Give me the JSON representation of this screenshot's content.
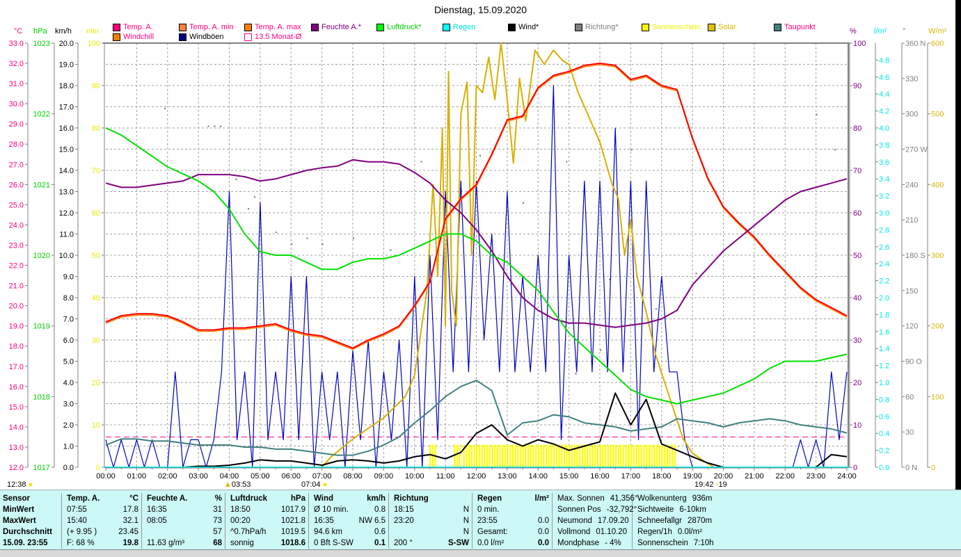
{
  "title": "Dienstag, 15.09.2020",
  "units": {
    "c": "°C",
    "hpa": "hPa",
    "kmh": "km/h",
    "min": "min",
    "pct": "%",
    "lm2": "l/m²",
    "deg": "°",
    "wm2": "W/m²"
  },
  "legend": [
    {
      "label": "Temp. A.",
      "color": "#ff0080",
      "text": "#ff0080"
    },
    {
      "label": "Temp. A. min",
      "color": "#ff8040",
      "text": "#ff0080"
    },
    {
      "label": "Temp. A. max",
      "color": "#ff8000",
      "text": "#ff0080"
    },
    {
      "label": "Feuchte A.*",
      "color": "#800080",
      "text": "#800080"
    },
    {
      "label": "Luftdruck*",
      "color": "#00ff00",
      "text": "#00d000"
    },
    {
      "label": "Regen",
      "color": "#00ffff",
      "text": "#00e0e0"
    },
    {
      "label": "Windchill",
      "color": "#ff8000",
      "text": "#ff0080"
    },
    {
      "label": "Windböen",
      "color": "#000080",
      "text": "#000000"
    },
    {
      "label": "13.5 Monat-Ø",
      "color": "#ffffff",
      "text": "#ff0080"
    },
    {
      "label": "Wind*",
      "color": "#000000",
      "text": "#000000"
    },
    {
      "label": "Richtung*",
      "color": "#808080",
      "text": "#808080"
    },
    {
      "label": "Sonnenschein",
      "color": "#ffff00",
      "text": "#f0f000"
    },
    {
      "label": "Solar",
      "color": "#e0c000",
      "text": "#d8b800"
    },
    {
      "label": "Taupunkt",
      "color": "#408080",
      "text": "#ff0080"
    }
  ],
  "markers": {
    "moon_left": "12:38",
    "moonrise": "03:53",
    "sunrise": "07:04",
    "sunset": "19:42",
    "sunset_extra": "19"
  },
  "chart_data": {
    "type": "line",
    "title": "Dienstag, 15.09.2020",
    "x_ticks": [
      "00:00",
      "01:00",
      "02:00",
      "03:00",
      "04:00",
      "05:00",
      "06:00",
      "07:00",
      "08:00",
      "09:00",
      "10:00",
      "11:00",
      "12:00",
      "13:00",
      "14:00",
      "15:00",
      "16:00",
      "17:00",
      "18:00",
      "19:00",
      "20:00",
      "21:00",
      "22:00",
      "23:00",
      "24:00"
    ],
    "axes": {
      "temp": {
        "unit": "°C",
        "range": [
          12,
          33
        ],
        "ticks": [
          "33.0",
          "32.0",
          "31.0",
          "30.0",
          "29.0",
          "28.0",
          "27.0",
          "26.0",
          "25.0",
          "24.0",
          "23.0",
          "22.0",
          "21.0",
          "20.0",
          "19.0",
          "18.0",
          "17.0",
          "16.0",
          "15.0",
          "14.0",
          "13.0",
          "12.0"
        ]
      },
      "pressure": {
        "unit": "hPa",
        "range": [
          1017,
          1023
        ],
        "ticks": [
          "1023",
          "1022",
          "1021",
          "1020",
          "1019",
          "1018",
          "1017"
        ]
      },
      "wind": {
        "unit": "km/h",
        "range": [
          0,
          20
        ],
        "ticks": [
          "20.0",
          "19.0",
          "18.0",
          "17.0",
          "16.0",
          "15.0",
          "14.0",
          "13.0",
          "12.0",
          "11.0",
          "10.0",
          "9.0",
          "8.0",
          "7.0",
          "6.0",
          "5.0",
          "4.0",
          "3.0",
          "2.0",
          "1.0",
          "0.0"
        ]
      },
      "sunshine": {
        "unit": "min",
        "range": [
          0,
          100
        ],
        "ticks": [
          "100",
          "90",
          "80",
          "70",
          "60",
          "50",
          "40",
          "30",
          "20",
          "10",
          "0"
        ]
      },
      "humidity": {
        "unit": "%",
        "range": [
          0,
          100
        ],
        "ticks": [
          "100",
          "90",
          "80",
          "70",
          "60",
          "50",
          "40",
          "30",
          "20",
          "10",
          "0"
        ]
      },
      "rain": {
        "unit": "l/m²",
        "range": [
          0,
          5
        ],
        "ticks": [
          "4.8",
          "4.6",
          "4.4",
          "4.2",
          "4.0",
          "3.8",
          "3.6",
          "3.4",
          "3.2",
          "3.0",
          "2.8",
          "2.6",
          "2.4",
          "2.2",
          "2.0",
          "1.8",
          "1.6",
          "1.4",
          "1.2",
          "1.0",
          "0.8",
          "0.6",
          "0.4",
          "0.2",
          "0.0"
        ]
      },
      "direction": {
        "unit": "°",
        "range": [
          0,
          360
        ],
        "ticks": [
          "360 N",
          "330",
          "300",
          "270 W",
          "240",
          "210",
          "180 S",
          "150",
          "120",
          "90 O",
          "60",
          "30",
          "0 N"
        ]
      },
      "solar": {
        "unit": "W/m²",
        "range": [
          0,
          600
        ],
        "ticks": [
          "600",
          "500",
          "400",
          "300",
          "200",
          "100",
          "0"
        ]
      }
    },
    "x_step_hours": 0.5,
    "series": [
      {
        "name": "Temp. A.",
        "axis": "temp",
        "values": [
          19.2,
          19.5,
          19.6,
          19.6,
          19.5,
          19.2,
          18.8,
          18.8,
          18.9,
          18.9,
          19.0,
          19.1,
          18.8,
          18.6,
          18.5,
          18.2,
          17.9,
          18.3,
          18.6,
          19.0,
          20.0,
          21.2,
          24.3,
          25.3,
          26.0,
          27.5,
          29.2,
          29.4,
          30.8,
          31.4,
          31.6,
          31.9,
          32.0,
          31.9,
          31.2,
          31.4,
          30.9,
          30.7,
          28.3,
          26.3,
          24.9,
          24.1,
          23.4,
          22.5,
          21.7,
          20.9,
          20.3,
          19.9,
          19.5
        ]
      },
      {
        "name": "Feuchte A.*",
        "axis": "humidity",
        "values": [
          67,
          66,
          66,
          66.5,
          67,
          67.5,
          69,
          69,
          69,
          68.5,
          67.5,
          68,
          69,
          70,
          70.6,
          71,
          72.5,
          72,
          72,
          71.5,
          69.5,
          67,
          63,
          60,
          56,
          51,
          45,
          40,
          37,
          35,
          34,
          34,
          33.5,
          33,
          33.5,
          34,
          35,
          37,
          43,
          47,
          51,
          54,
          57,
          60,
          63,
          65,
          66,
          67,
          68
        ]
      },
      {
        "name": "Luftdruck*",
        "axis": "pressure",
        "values": [
          1021.8,
          1021.7,
          1021.55,
          1021.4,
          1021.25,
          1021.15,
          1021.05,
          1020.9,
          1020.65,
          1020.3,
          1020.05,
          1020.0,
          1020.0,
          1019.9,
          1019.8,
          1019.8,
          1019.9,
          1019.95,
          1019.95,
          1020.0,
          1020.1,
          1020.2,
          1020.3,
          1020.3,
          1020.2,
          1020.0,
          1019.9,
          1019.7,
          1019.5,
          1019.2,
          1018.9,
          1018.7,
          1018.5,
          1018.3,
          1018.1,
          1018.0,
          1017.95,
          1017.9,
          1017.95,
          1018.0,
          1018.05,
          1018.15,
          1018.25,
          1018.4,
          1018.5,
          1018.5,
          1018.5,
          1018.55,
          1018.6
        ]
      },
      {
        "name": "Taupunkt",
        "axis": "temp",
        "values": [
          13.1,
          13.4,
          13.4,
          13.3,
          13.3,
          13.2,
          13.1,
          13.1,
          13.1,
          13.0,
          13.0,
          12.9,
          12.9,
          12.8,
          12.7,
          12.6,
          12.6,
          12.8,
          13.1,
          13.5,
          14.2,
          14.8,
          15.5,
          16.0,
          16.3,
          15.8,
          13.6,
          14.2,
          14.3,
          14.6,
          14.5,
          14.2,
          14.1,
          14.0,
          13.8,
          13.9,
          14.0,
          14.4,
          14.3,
          14.2,
          14.0,
          14.2,
          14.3,
          14.4,
          14.3,
          14.1,
          14.0,
          13.9,
          13.7
        ]
      },
      {
        "name": "Wind*",
        "axis": "wind",
        "values": [
          0,
          0,
          0,
          0,
          0,
          0,
          0.05,
          0.05,
          0.1,
          0.2,
          0.35,
          0.3,
          0.3,
          0.2,
          0.1,
          0.3,
          0.35,
          0.3,
          0.2,
          0.3,
          0.5,
          0.6,
          0.4,
          0.7,
          1.6,
          2.0,
          1.3,
          1.0,
          1.3,
          1.1,
          0.8,
          1.0,
          1.2,
          3.5,
          2.0,
          3.2,
          1.1,
          0.8,
          0.5,
          0.2,
          0,
          0,
          0,
          0,
          0,
          0,
          0,
          0.6,
          0.5
        ]
      }
    ],
    "gusts": {
      "name": "Windböen",
      "axis": "wind",
      "x_step_hours": 0.25,
      "values": [
        1.3,
        0,
        1.3,
        0,
        1.3,
        0,
        1.3,
        0,
        0,
        4.5,
        0,
        1.3,
        1.3,
        0,
        1.3,
        4.5,
        13,
        1.3,
        4.5,
        0,
        12.5,
        1.3,
        4.5,
        1.3,
        9,
        1.3,
        9,
        0,
        4.5,
        1.3,
        4.5,
        0,
        5.5,
        1.3,
        6,
        0,
        4.5,
        1.3,
        6,
        0,
        9,
        0,
        10,
        1.3,
        13,
        4.5,
        13.5,
        4.5,
        13.5,
        6,
        11,
        4.5,
        13,
        4.5,
        9,
        4.5,
        10,
        4.5,
        18,
        1.3,
        10,
        4.5,
        13.5,
        4.5,
        13.5,
        4.5,
        16,
        4.5,
        13.5,
        1.3,
        13.5,
        4.5,
        9,
        4.5,
        4.5,
        1.3,
        0,
        0,
        0,
        0,
        0,
        0,
        0,
        0,
        0,
        0,
        0,
        0,
        0,
        0,
        1.3,
        0,
        1.3,
        0,
        4.5,
        1.3,
        4.5
      ]
    },
    "solar": {
      "name": "Solar",
      "axis": "solar",
      "points": [
        [
          0,
          0
        ],
        [
          7,
          0
        ],
        [
          7.3,
          15
        ],
        [
          8,
          40
        ],
        [
          9,
          70
        ],
        [
          9.7,
          100
        ],
        [
          10,
          130
        ],
        [
          10.4,
          250
        ],
        [
          10.6,
          400
        ],
        [
          10.75,
          270
        ],
        [
          10.9,
          480
        ],
        [
          11,
          200
        ],
        [
          11.1,
          560
        ],
        [
          11.2,
          250
        ],
        [
          11.35,
          200
        ],
        [
          11.5,
          500
        ],
        [
          11.7,
          545
        ],
        [
          11.85,
          300
        ],
        [
          12,
          540
        ],
        [
          12.2,
          530
        ],
        [
          12.4,
          580
        ],
        [
          12.6,
          520
        ],
        [
          12.8,
          600
        ],
        [
          13,
          520
        ],
        [
          13.2,
          430
        ],
        [
          13.4,
          550
        ],
        [
          13.6,
          490
        ],
        [
          13.9,
          590
        ],
        [
          14.2,
          570
        ],
        [
          14.5,
          590
        ],
        [
          14.8,
          575
        ],
        [
          15,
          570
        ],
        [
          15.3,
          530
        ],
        [
          15.6,
          500
        ],
        [
          16,
          460
        ],
        [
          16.4,
          400
        ],
        [
          16.6,
          380
        ],
        [
          16.8,
          300
        ],
        [
          17,
          350
        ],
        [
          17.2,
          270
        ],
        [
          17.5,
          220
        ],
        [
          17.8,
          160
        ],
        [
          18.1,
          120
        ],
        [
          18.4,
          80
        ],
        [
          18.7,
          40
        ],
        [
          19,
          20
        ],
        [
          19.4,
          8
        ],
        [
          19.7,
          0
        ],
        [
          24,
          0
        ]
      ]
    },
    "sunshine": {
      "name": "Sonnenschein",
      "axis": "sunshine",
      "value": 5,
      "intervals": [
        [
          10.5,
          10.7
        ],
        [
          11.3,
          11.5
        ],
        [
          11.6,
          18.5
        ]
      ]
    },
    "direction": {
      "name": "Richtung*",
      "axis": "direction",
      "points": [
        [
          1.9,
          305
        ],
        [
          3.3,
          290
        ],
        [
          3.5,
          290
        ],
        [
          3.7,
          290
        ],
        [
          4.2,
          245
        ],
        [
          4.6,
          220
        ],
        [
          4.8,
          230
        ],
        [
          5.5,
          200
        ],
        [
          6.0,
          190
        ],
        [
          6.5,
          195
        ],
        [
          7.0,
          190
        ],
        [
          8.0,
          195
        ],
        [
          9.2,
          185
        ],
        [
          10.2,
          260
        ],
        [
          12.1,
          265
        ],
        [
          13.5,
          225
        ],
        [
          14.9,
          260
        ],
        [
          15.2,
          80
        ],
        [
          16.0,
          100
        ],
        [
          16.3,
          160
        ],
        [
          17.0,
          270
        ],
        [
          17.8,
          135
        ],
        [
          19.1,
          165
        ],
        [
          23.0,
          300
        ],
        [
          23.6,
          270
        ]
      ]
    },
    "monthly_avg": {
      "name": "13.5 Monat-Ø",
      "axis": "temp",
      "value": 13.5
    },
    "rain": {
      "name": "Regen",
      "axis": "rain",
      "value": 0.0
    }
  },
  "stats": [
    {
      "rows": [
        [
          "Sensor",
          ""
        ],
        [
          "MinWert",
          ""
        ],
        [
          "MaxWert",
          ""
        ],
        [
          "Durchschnitt",
          ""
        ],
        [
          "15.09. 23:55",
          ""
        ]
      ],
      "allbold": true
    },
    {
      "rows": [
        [
          "Temp. A.",
          "°C"
        ],
        [
          "07:55",
          "17.8"
        ],
        [
          "15:40",
          "32.1"
        ],
        [
          "(+ 9.95 )",
          "23.45"
        ],
        [
          "F: 68 %",
          "19.8"
        ]
      ]
    },
    {
      "rows": [
        [
          "Feuchte A.",
          "%"
        ],
        [
          "16:35",
          "31"
        ],
        [
          "08:05",
          "73"
        ],
        [
          "",
          "57"
        ],
        [
          "11.63 g/m³",
          "68"
        ]
      ]
    },
    {
      "rows": [
        [
          "Luftdruck",
          "hPa"
        ],
        [
          "18:50",
          "1017.9"
        ],
        [
          "00:20",
          "1021.8"
        ],
        [
          "^0.7hPa/h",
          "1019.5"
        ],
        [
          "sonnig",
          "1018.6"
        ]
      ]
    },
    {
      "rows": [
        [
          "Wind",
          "km/h"
        ],
        [
          "Ø 10 min.",
          "0.8"
        ],
        [
          "16:35",
          "NW 6.5"
        ],
        [
          "94.6 km",
          "0.6"
        ],
        [
          "0 Bft S-SW",
          "0.1"
        ]
      ]
    },
    {
      "rows": [
        [
          "Richtung",
          ""
        ],
        [
          "18:15",
          "N"
        ],
        [
          "23:20",
          "N"
        ],
        [
          "",
          "N"
        ],
        [
          "200 °",
          "S-SW"
        ]
      ]
    },
    {
      "rows": [
        [
          "Regen",
          "l/m²"
        ],
        [
          "0 min.",
          ""
        ],
        [
          "23:55",
          "0.0"
        ],
        [
          "Gesamt:",
          "0.0"
        ],
        [
          "0.0 l/m²",
          "0.0"
        ]
      ]
    },
    {
      "rows": [
        [
          "Max. Sonnen",
          "41,356°"
        ],
        [
          "Sonnen Pos",
          "-32,792°"
        ],
        [
          "Neumond",
          "17.09.20"
        ],
        [
          "Vollmond",
          "01.10.20"
        ],
        [
          "Mondphase",
          "- 4%"
        ]
      ],
      "plain": true
    },
    {
      "rows": [
        [
          "Wolkenunterg",
          "936m"
        ],
        [
          "Sichtweite",
          "6-10km"
        ],
        [
          "Schneefallgr",
          "2870m"
        ],
        [
          "Regen/1h",
          "0.0l/m²"
        ],
        [
          "Sonnenschein",
          "7:10h"
        ]
      ],
      "plain": true
    }
  ]
}
